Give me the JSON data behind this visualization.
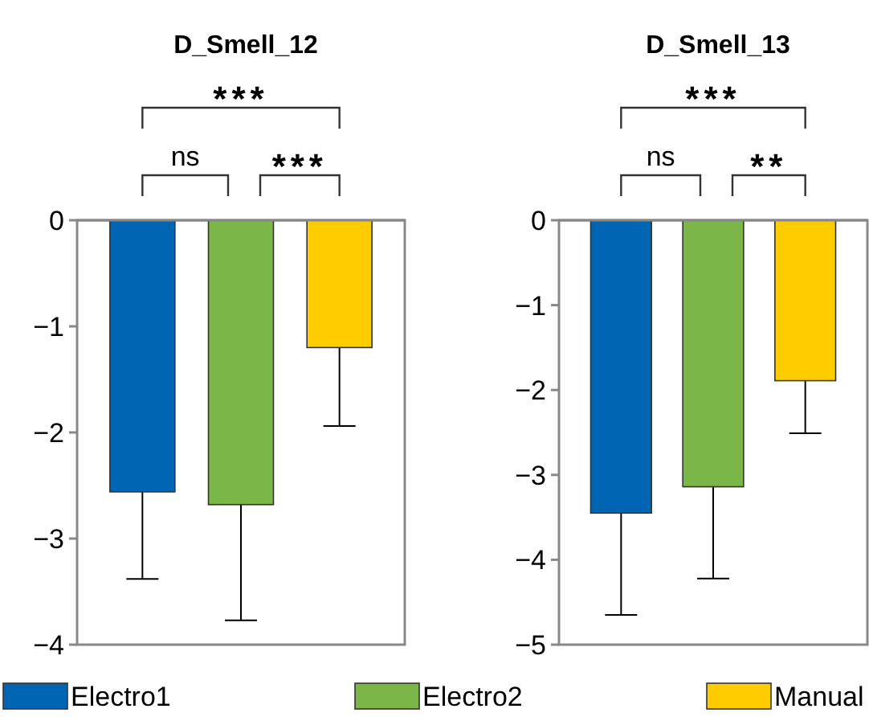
{
  "chart_data": [
    {
      "type": "bar",
      "title": "D_Smell_12",
      "categories": [
        null
      ],
      "ylim": [
        -4,
        0
      ],
      "yticks": [
        {
          "value": -4,
          "label": "−4"
        },
        {
          "value": -3,
          "label": "−3"
        },
        {
          "value": -2,
          "label": "−2"
        },
        {
          "value": -1,
          "label": "−1"
        },
        0
      ],
      "legend": "bottom",
      "grid": false,
      "series": [
        {
          "name": "Electro1",
          "color": "#0066b3",
          "values": [
            -2.56
          ],
          "errors": [
            [
              -3.38,
              -2.56
            ]
          ]
        },
        {
          "name": "Electro2",
          "color": "#7ab648",
          "values": [
            -2.68
          ],
          "errors": [
            [
              -3.77,
              -2.68
            ]
          ]
        },
        {
          "name": "Manual",
          "color": "#ffcc00",
          "values": [
            -1.2
          ],
          "errors": [
            [
              -1.94,
              -1.2
            ]
          ]
        }
      ],
      "annotations": [
        "***",
        "ns",
        "***"
      ]
    },
    {
      "type": "bar",
      "title": "D_Smell_13",
      "categories": [
        null
      ],
      "ylim": [
        -5,
        0
      ],
      "yticks": [
        {
          "value": -5,
          "label": "−5"
        },
        {
          "value": -4,
          "label": "−4"
        },
        {
          "value": -3,
          "label": "−3"
        },
        {
          "value": -2,
          "label": "−2"
        },
        {
          "value": -1,
          "label": "−1"
        },
        0
      ],
      "grid": false,
      "series": [
        {
          "color": "#0066b3",
          "values": [
            -3.45
          ],
          "errors": [
            [
              -4.65,
              -3.45
            ]
          ]
        },
        {
          "color": "#7ab648",
          "values": [
            -3.14
          ],
          "errors": [
            [
              -4.22,
              -3.14
            ]
          ]
        },
        {
          "color": "#ffcc00",
          "values": [
            -1.89
          ],
          "errors": [
            [
              -2.51,
              -1.89
            ]
          ]
        }
      ],
      "annotations": [
        "***",
        "ns",
        "**"
      ]
    }
  ]
}
